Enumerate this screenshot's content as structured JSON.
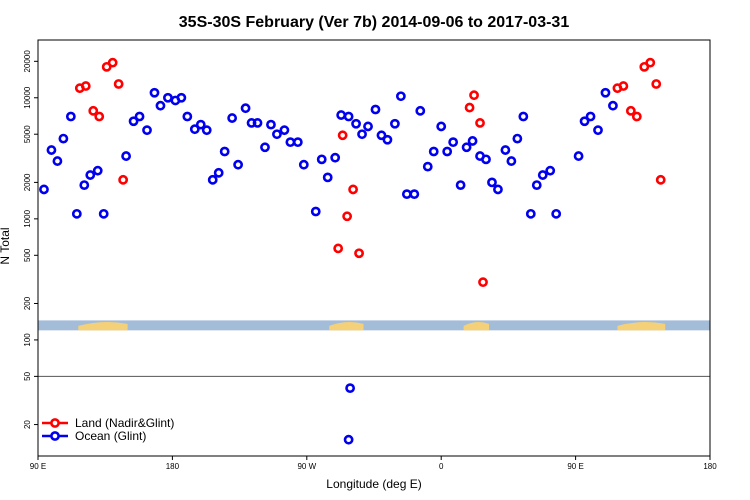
{
  "chart_data": {
    "type": "scatter",
    "title": "35S-30S February (Ver 7b)   2014-09-06 to 2017-03-31",
    "xlabel": "Longitude (deg E)",
    "ylabel": "N Total",
    "y_scale": "log",
    "xlim": [
      90,
      540
    ],
    "ylim": [
      11,
      30000
    ],
    "x_ticks": [
      {
        "value": 90,
        "label": "90 E"
      },
      {
        "value": 180,
        "label": "180"
      },
      {
        "value": 270,
        "label": "90 W"
      },
      {
        "value": 360,
        "label": "0"
      },
      {
        "value": 450,
        "label": "90 E"
      },
      {
        "value": 540,
        "label": "180"
      }
    ],
    "y_ticks": [
      {
        "value": 20,
        "label": "20"
      },
      {
        "value": 50,
        "label": "50"
      },
      {
        "value": 100,
        "label": "100"
      },
      {
        "value": 200,
        "label": "200"
      },
      {
        "value": 500,
        "label": "500"
      },
      {
        "value": 1000,
        "label": "1000"
      },
      {
        "value": 2000,
        "label": "2000"
      },
      {
        "value": 5000,
        "label": "5000"
      },
      {
        "value": 10000,
        "label": "10000"
      },
      {
        "value": 20000,
        "label": "20000"
      }
    ],
    "reference_line": 50,
    "legend": {
      "position": "bottom-left"
    },
    "series": [
      {
        "name": "Land (Nadir&Glint)",
        "color": "#ff0000",
        "points": [
          [
            118,
            12000
          ],
          [
            122,
            12500
          ],
          [
            127,
            7800
          ],
          [
            131,
            7000
          ],
          [
            136,
            18000
          ],
          [
            140,
            19500
          ],
          [
            144,
            13000
          ],
          [
            147,
            2100
          ],
          [
            291,
            570
          ],
          [
            294,
            4900
          ],
          [
            297,
            1050
          ],
          [
            301,
            1750
          ],
          [
            305,
            520
          ],
          [
            379,
            8300
          ],
          [
            382,
            10500
          ],
          [
            386,
            6200
          ],
          [
            388,
            300
          ],
          [
            478,
            12000
          ],
          [
            482,
            12500
          ],
          [
            487,
            7800
          ],
          [
            491,
            7000
          ],
          [
            496,
            18000
          ],
          [
            500,
            19500
          ],
          [
            504,
            13000
          ],
          [
            507,
            2100
          ]
        ]
      },
      {
        "name": "Ocean (Glint)",
        "color": "#0000ee",
        "points": [
          [
            94,
            1750
          ],
          [
            99,
            3700
          ],
          [
            103,
            3000
          ],
          [
            107,
            4600
          ],
          [
            112,
            7000
          ],
          [
            116,
            1100
          ],
          [
            121,
            1900
          ],
          [
            125,
            2300
          ],
          [
            130,
            2500
          ],
          [
            134,
            1100
          ],
          [
            149,
            3300
          ],
          [
            154,
            6400
          ],
          [
            158,
            7000
          ],
          [
            163,
            5400
          ],
          [
            168,
            11000
          ],
          [
            172,
            8600
          ],
          [
            177,
            10000
          ],
          [
            182,
            9500
          ],
          [
            186,
            10000
          ],
          [
            190,
            7000
          ],
          [
            195,
            5500
          ],
          [
            199,
            6000
          ],
          [
            203,
            5400
          ],
          [
            207,
            2100
          ],
          [
            211,
            2400
          ],
          [
            215,
            3600
          ],
          [
            220,
            6800
          ],
          [
            224,
            2800
          ],
          [
            229,
            8200
          ],
          [
            233,
            6200
          ],
          [
            237,
            6200
          ],
          [
            242,
            3900
          ],
          [
            246,
            6000
          ],
          [
            250,
            5000
          ],
          [
            255,
            5400
          ],
          [
            259,
            4300
          ],
          [
            264,
            4300
          ],
          [
            268,
            2800
          ],
          [
            276,
            1150
          ],
          [
            280,
            3100
          ],
          [
            284,
            2200
          ],
          [
            289,
            3200
          ],
          [
            293,
            7200
          ],
          [
            298,
            7000
          ],
          [
            303,
            6100
          ],
          [
            307,
            5000
          ],
          [
            311,
            5800
          ],
          [
            316,
            8000
          ],
          [
            320,
            4900
          ],
          [
            324,
            4500
          ],
          [
            329,
            6100
          ],
          [
            333,
            10300
          ],
          [
            337,
            1600
          ],
          [
            342,
            1600
          ],
          [
            346,
            7800
          ],
          [
            351,
            2700
          ],
          [
            355,
            3600
          ],
          [
            360,
            5800
          ],
          [
            364,
            3600
          ],
          [
            368,
            4300
          ],
          [
            373,
            1900
          ],
          [
            377,
            3900
          ],
          [
            381,
            4400
          ],
          [
            386,
            3300
          ],
          [
            390,
            3100
          ],
          [
            394,
            2000
          ],
          [
            398,
            1750
          ],
          [
            403,
            3700
          ],
          [
            407,
            3000
          ],
          [
            411,
            4600
          ],
          [
            415,
            7000
          ],
          [
            420,
            1100
          ],
          [
            424,
            1900
          ],
          [
            428,
            2300
          ],
          [
            433,
            2500
          ],
          [
            437,
            1100
          ],
          [
            452,
            3300
          ],
          [
            456,
            6400
          ],
          [
            460,
            7000
          ],
          [
            465,
            5400
          ],
          [
            470,
            11000
          ],
          [
            475,
            8600
          ],
          [
            299,
            40
          ],
          [
            298,
            15
          ]
        ]
      }
    ],
    "map_strip": {
      "y_range": [
        120,
        145
      ],
      "ocean_color": "#a3bcd8",
      "land_color": "#f4d078",
      "land_segments": [
        [
          117,
          150
        ],
        [
          285,
          308
        ],
        [
          375,
          392
        ],
        [
          478,
          510
        ]
      ]
    }
  }
}
